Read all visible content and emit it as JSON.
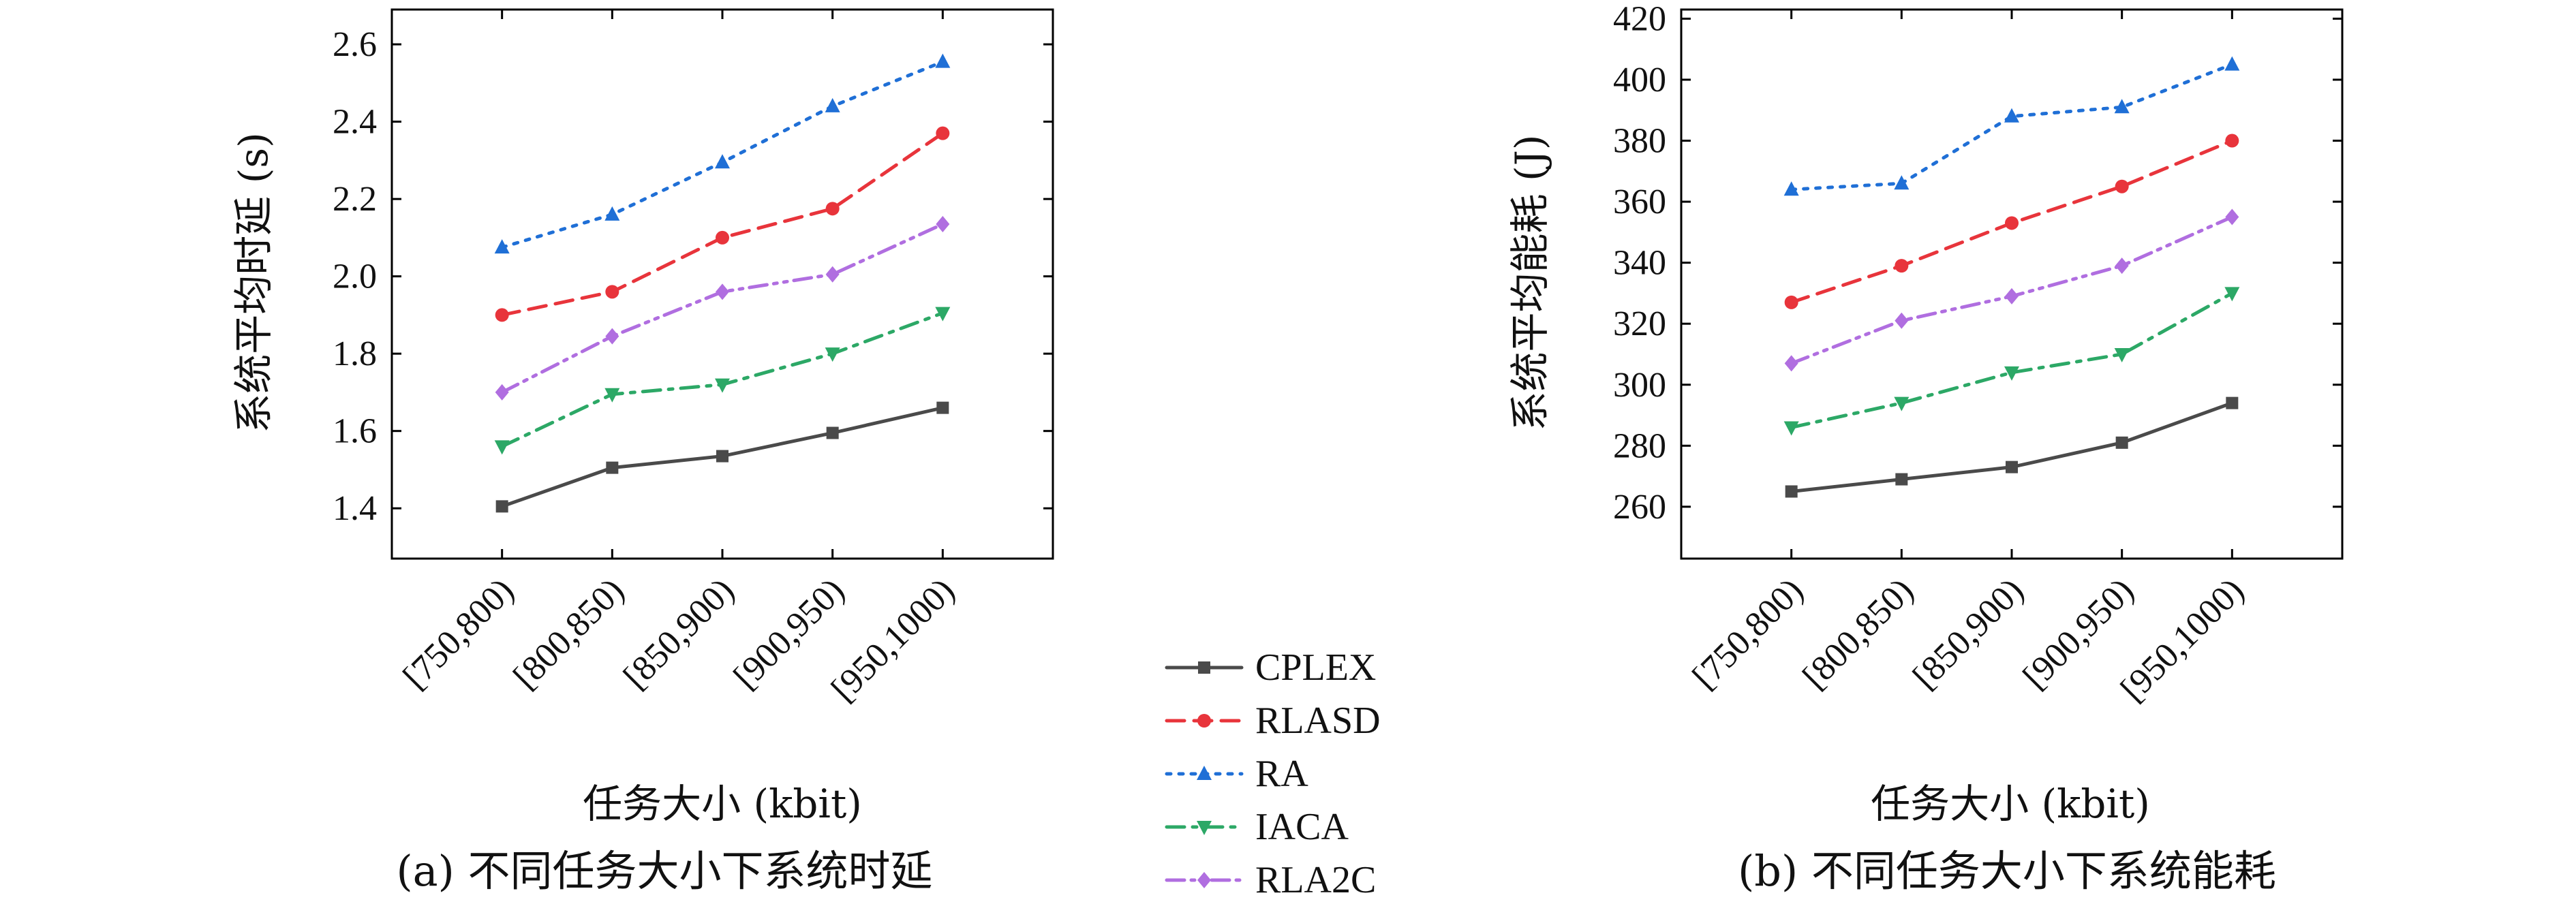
{
  "chart_data": [
    {
      "type": "line",
      "caption": "(a) 不同任务大小下系统时延",
      "xlabel": "任务大小 (kbit)",
      "ylabel": "系统平均时延 (s)",
      "categories": [
        "[750,800)",
        "[800,850)",
        "[850,900)",
        "[900,950)",
        "[950,1000)"
      ],
      "ylim": [
        1.27,
        2.69
      ],
      "yticks": [
        "1.4",
        "1.6",
        "1.8",
        "2.0",
        "2.2",
        "2.4",
        "2.6"
      ],
      "grid": false,
      "series": [
        {
          "name": "CPLEX",
          "values": [
            1.405,
            1.505,
            1.535,
            1.595,
            1.66
          ]
        },
        {
          "name": "RLASD",
          "values": [
            1.9,
            1.96,
            2.1,
            2.175,
            2.37
          ]
        },
        {
          "name": "RA",
          "values": [
            2.075,
            2.16,
            2.295,
            2.44,
            2.555
          ]
        },
        {
          "name": "IACA",
          "values": [
            1.56,
            1.695,
            1.72,
            1.8,
            1.905
          ]
        },
        {
          "name": "RLA2C",
          "values": [
            1.7,
            1.845,
            1.96,
            2.005,
            2.135
          ]
        }
      ]
    },
    {
      "type": "line",
      "caption": "(b) 不同任务大小下系统能耗",
      "xlabel": "任务大小 (kbit)",
      "ylabel": "系统平均能耗 (J)",
      "categories": [
        "[750,800)",
        "[800,850)",
        "[850,900)",
        "[900,950)",
        "[950,1000)"
      ],
      "ylim": [
        243,
        423
      ],
      "yticks": [
        "260",
        "280",
        "300",
        "320",
        "340",
        "360",
        "380",
        "400",
        "420"
      ],
      "grid": false,
      "series": [
        {
          "name": "CPLEX",
          "values": [
            265,
            269,
            273,
            281,
            294
          ]
        },
        {
          "name": "RLASD",
          "values": [
            327,
            339,
            353,
            365,
            380
          ]
        },
        {
          "name": "RA",
          "values": [
            364,
            366,
            388,
            391,
            405
          ]
        },
        {
          "name": "IACA",
          "values": [
            286,
            294,
            304,
            310,
            330
          ]
        },
        {
          "name": "RLA2C",
          "values": [
            307,
            321,
            329,
            339,
            355
          ]
        }
      ]
    }
  ],
  "legend": {
    "placement": "center-bottom",
    "entries": [
      "CPLEX",
      "RLASD",
      "RA",
      "IACA",
      "RLA2C"
    ]
  },
  "series_style": {
    "CPLEX": {
      "color": "#4a4a4a",
      "marker": "square",
      "dash": "solid"
    },
    "RLASD": {
      "color": "#e8343b",
      "marker": "circle",
      "dash": "dashed"
    },
    "RA": {
      "color": "#1f6fd6",
      "marker": "triangle-up",
      "dash": "dotted"
    },
    "IACA": {
      "color": "#2ca866",
      "marker": "triangle-down",
      "dash": "dashdot"
    },
    "RLA2C": {
      "color": "#b06ee0",
      "marker": "diamond",
      "dash": "dashdotdot"
    }
  }
}
